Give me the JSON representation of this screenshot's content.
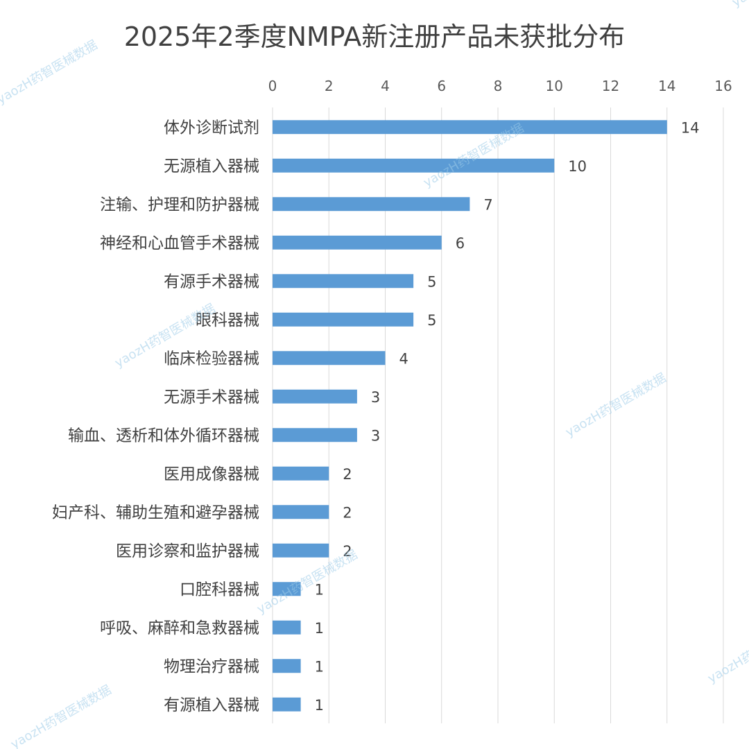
{
  "chart_data": {
    "type": "bar",
    "orientation": "horizontal",
    "title": "2025年2季度NMPA新注册产品未获批分布",
    "xlabel": "",
    "ylabel": "",
    "xlim": [
      0,
      16
    ],
    "x_ticks": [
      0,
      2,
      4,
      6,
      8,
      10,
      12,
      14,
      16
    ],
    "x_axis_position": "top",
    "grid": true,
    "legend": "none",
    "bar_color": "#5b9bd5",
    "categories": [
      "体外诊断试剂",
      "无源植入器械",
      "注输、护理和防护器械",
      "神经和心血管手术器械",
      "有源手术器械",
      "眼科器械",
      "临床检验器械",
      "无源手术器械",
      "输血、透析和体外循环器械",
      "医用成像器械",
      "妇产科、辅助生殖和避孕器械",
      "医用诊察和监护器械",
      "口腔科器械",
      "呼吸、麻醉和急救器械",
      "物理治疗器械",
      "有源植入器械"
    ],
    "values": [
      14,
      10,
      7,
      6,
      5,
      5,
      4,
      3,
      3,
      2,
      2,
      2,
      1,
      1,
      1,
      1
    ],
    "watermark": "yaozH药智医械数据"
  }
}
